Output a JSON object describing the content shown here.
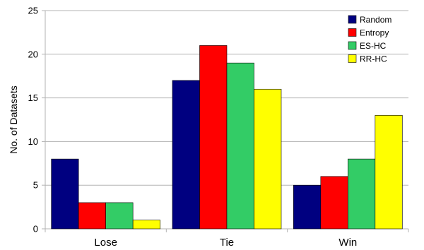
{
  "chart_data": {
    "type": "bar",
    "categories": [
      "Lose",
      "Tie",
      "Win"
    ],
    "series": [
      {
        "name": "Random",
        "values": [
          8,
          17,
          5
        ],
        "color": "#000080"
      },
      {
        "name": "Entropy",
        "values": [
          3,
          21,
          6
        ],
        "color": "#ff0000"
      },
      {
        "name": "ES-HC",
        "values": [
          3,
          19,
          8
        ],
        "color": "#33cc66"
      },
      {
        "name": "RR-HC",
        "values": [
          1,
          16,
          13
        ],
        "color": "#ffff00"
      }
    ],
    "title": "",
    "xlabel": "",
    "ylabel": "No. of Datasets",
    "ylim": [
      0,
      25
    ],
    "yticks": [
      0,
      5,
      10,
      15,
      20,
      25
    ],
    "grid": "horizontal",
    "legend_position": "top-right"
  }
}
